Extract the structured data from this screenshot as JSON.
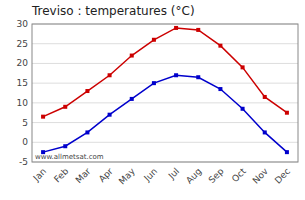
{
  "chart_data": {
    "type": "line",
    "title": "Treviso : temperatures (°C)",
    "categories": [
      "Jan",
      "Feb",
      "Mar",
      "Apr",
      "May",
      "Jun",
      "Jul",
      "Aug",
      "Sep",
      "Oct",
      "Nov",
      "Dec"
    ],
    "series": [
      {
        "color": "#cc0000",
        "values": [
          6.5,
          9.0,
          13.0,
          17.0,
          22.0,
          26.0,
          29.0,
          28.5,
          24.5,
          19.0,
          11.5,
          7.5
        ]
      },
      {
        "color": "#0000cc",
        "values": [
          -2.5,
          -1.0,
          2.5,
          7.0,
          11.0,
          15.0,
          17.0,
          16.5,
          13.5,
          8.5,
          2.5,
          -2.5
        ]
      }
    ],
    "ylim": [
      -5,
      30
    ],
    "yticks": [
      -5,
      0,
      5,
      10,
      15,
      20,
      25,
      30
    ],
    "grid": true,
    "marker": "square",
    "annotations": [
      "www.allmetsat.com"
    ]
  }
}
